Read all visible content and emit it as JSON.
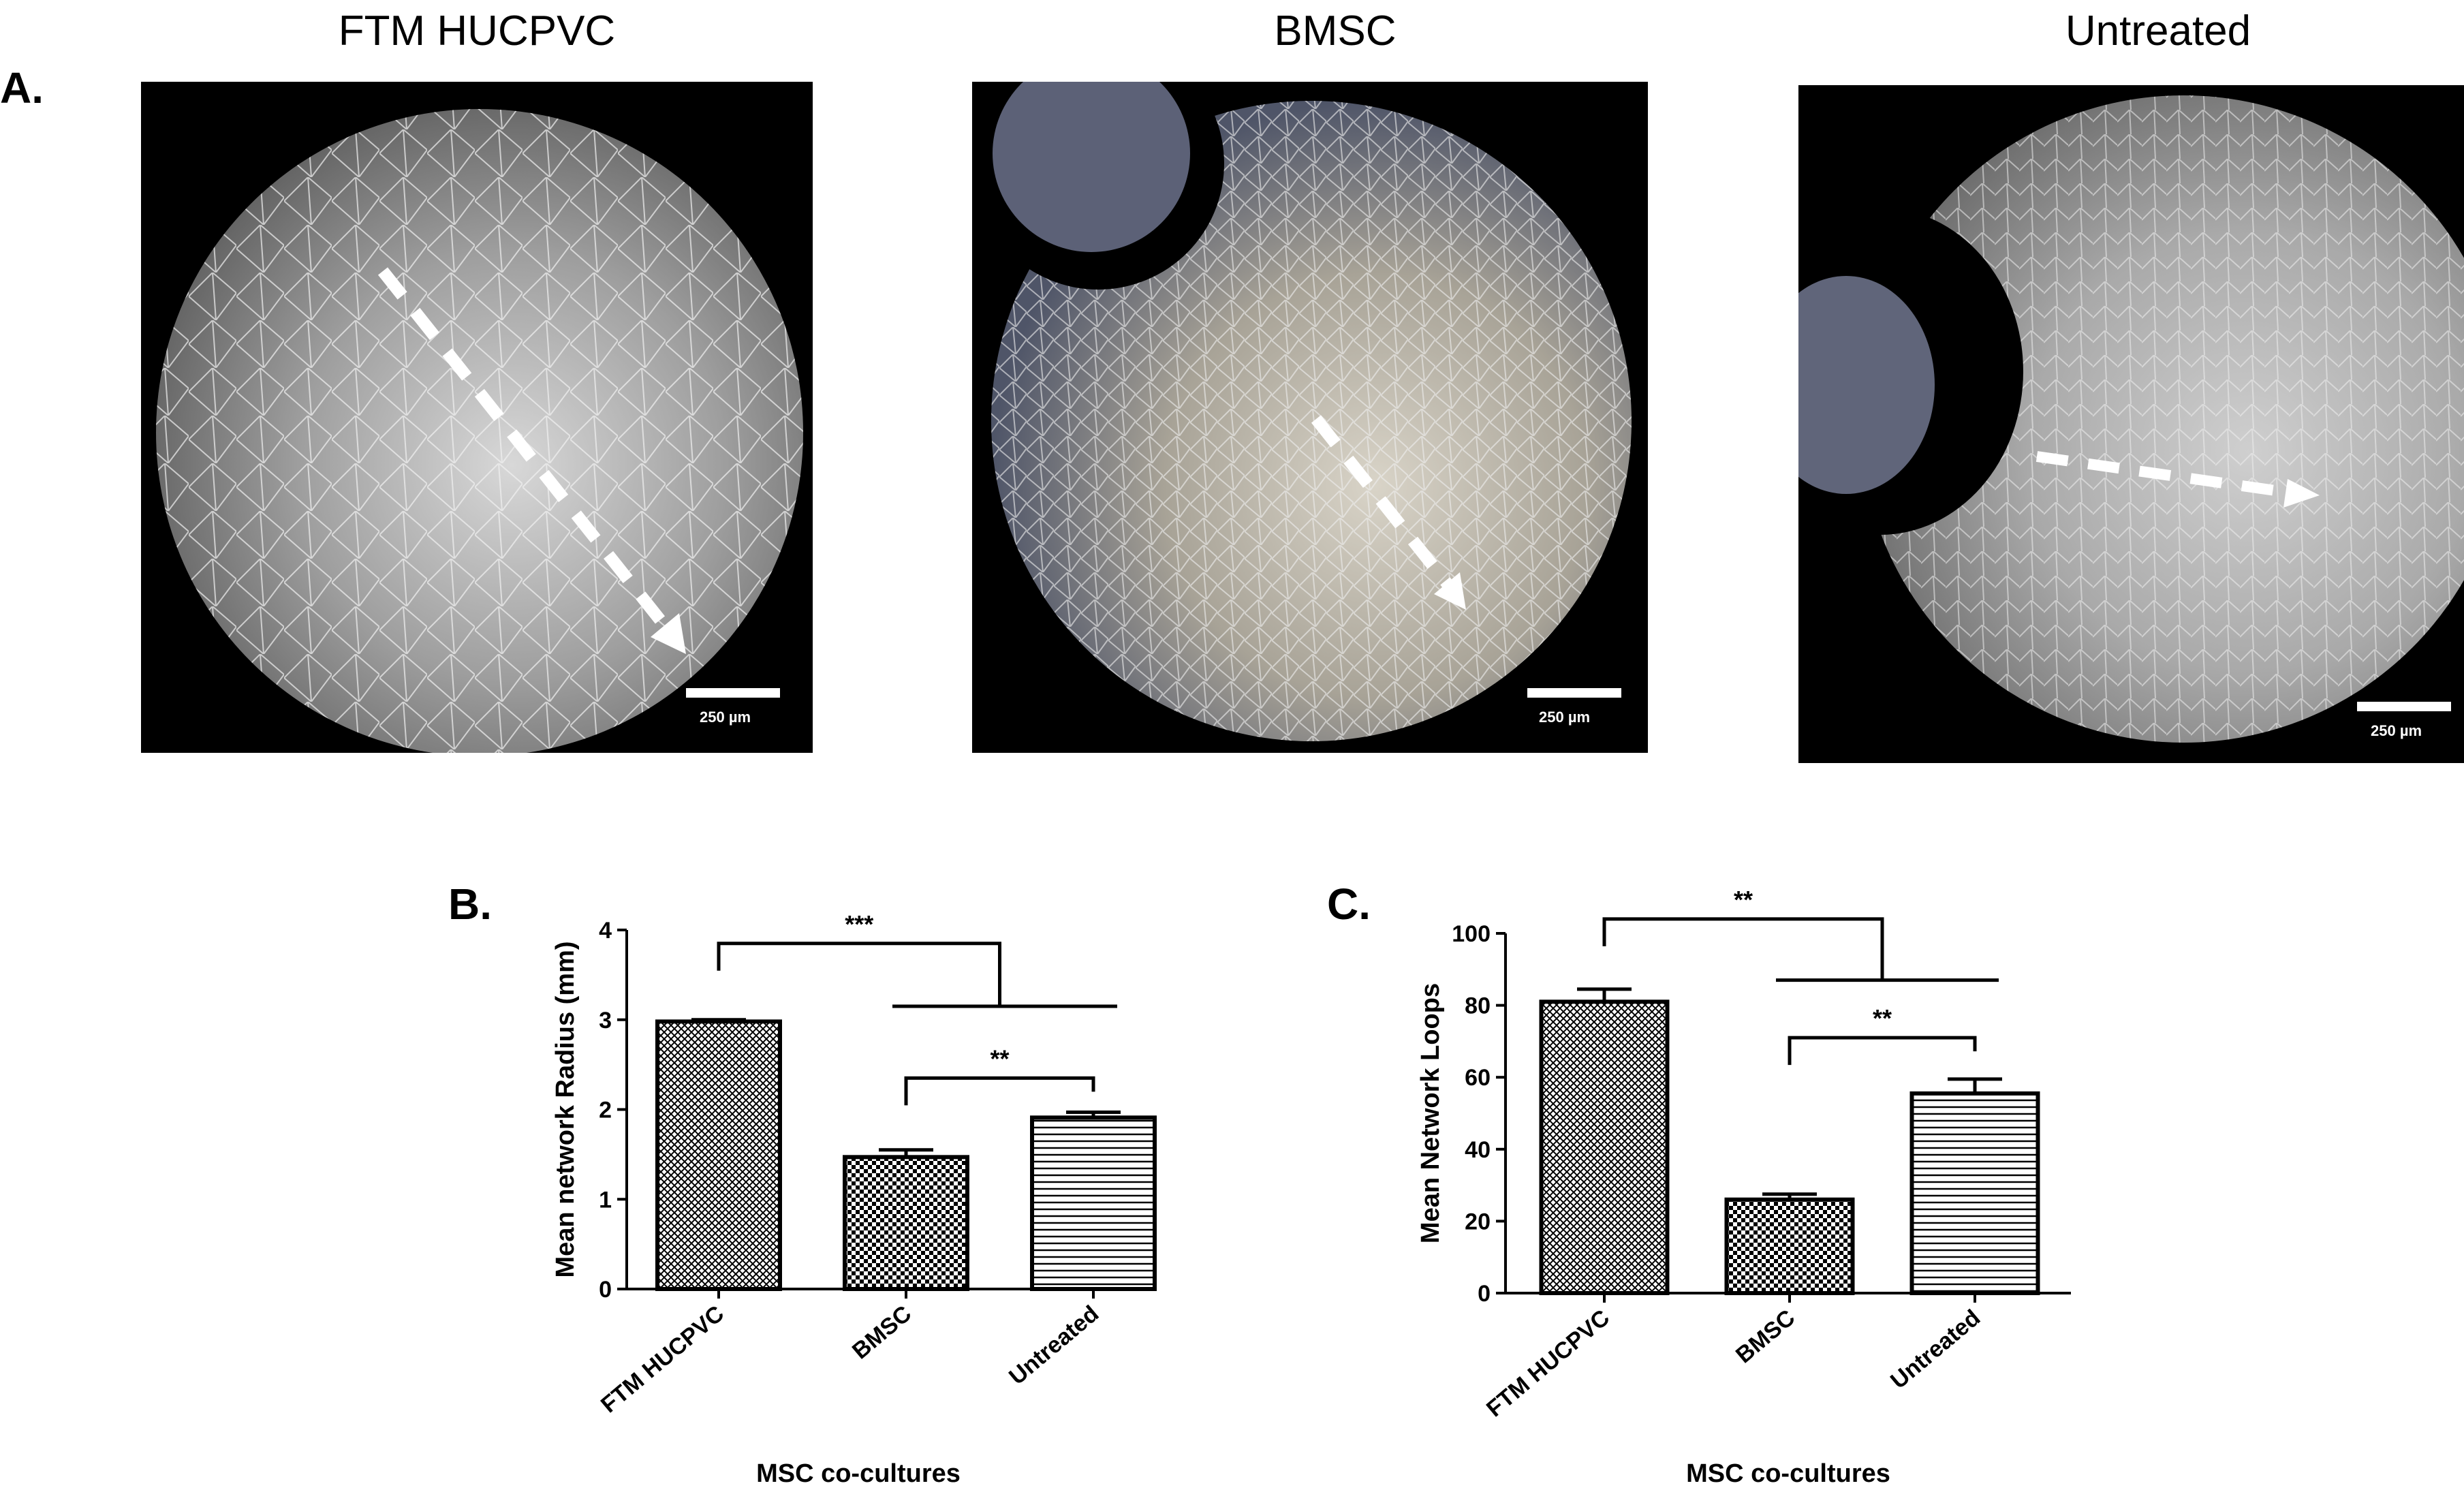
{
  "panel_labels": {
    "a": "A.",
    "b": "B.",
    "c": "C."
  },
  "micrographs": [
    {
      "title": "FTM HUCPVC",
      "scale_bar": "250 µm"
    },
    {
      "title": "BMSC",
      "scale_bar": "250 µm"
    },
    {
      "title": "Untreated",
      "scale_bar": "250 µm"
    }
  ],
  "colors": {
    "bar_fill": "#ffffff",
    "bar_stroke": "#000000",
    "arrow": "#ffffff"
  },
  "chart_data": [
    {
      "type": "bar",
      "panel": "B.",
      "categories": [
        "FTM HUCPVC",
        "BMSC",
        "Untreated"
      ],
      "values": [
        2.98,
        1.47,
        1.91
      ],
      "errors": [
        0.02,
        0.08,
        0.06
      ],
      "patterns": [
        "crosshatch",
        "checker",
        "horizontal-lines"
      ],
      "xlabel": "MSC co-cultures",
      "ylabel": "Mean network Radius (mm)",
      "ylim": [
        0,
        4
      ],
      "yticks": [
        0,
        1,
        2,
        3,
        4
      ],
      "significance": [
        {
          "label": "***",
          "from": "FTM HUCPVC",
          "to": [
            "BMSC",
            "Untreated"
          ]
        },
        {
          "label": "**",
          "from": "BMSC",
          "to": [
            "Untreated"
          ]
        }
      ]
    },
    {
      "type": "bar",
      "panel": "C.",
      "categories": [
        "FTM HUCPVC",
        "BMSC",
        "Untreated"
      ],
      "values": [
        81,
        26,
        55.5
      ],
      "errors": [
        3.5,
        1.5,
        4
      ],
      "patterns": [
        "crosshatch",
        "checker",
        "horizontal-lines"
      ],
      "xlabel": "MSC co-cultures",
      "ylabel": "Mean  Network Loops",
      "ylim": [
        0,
        100
      ],
      "yticks": [
        0,
        20,
        40,
        60,
        80,
        100
      ],
      "significance": [
        {
          "label": "**",
          "from": "FTM HUCPVC",
          "to": [
            "BMSC",
            "Untreated"
          ]
        },
        {
          "label": "**",
          "from": "BMSC",
          "to": [
            "Untreated"
          ]
        }
      ]
    }
  ]
}
